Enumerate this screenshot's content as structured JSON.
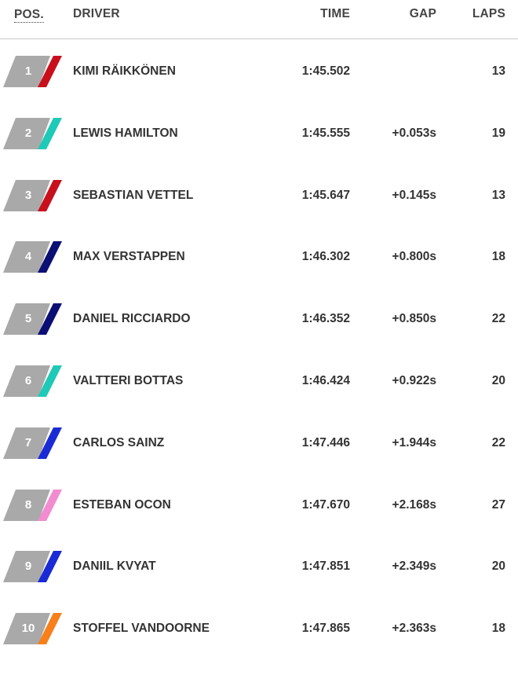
{
  "header": {
    "pos": "POS.",
    "driver": "DRIVER",
    "time": "TIME",
    "gap": "GAP",
    "laps": "LAPS"
  },
  "colors": {
    "badge_grey": "#a9a9a9",
    "ferrari": "#c8101c",
    "mercedes": "#1fc9b8",
    "red_bull": "#0b0f73",
    "toro_rosso": "#1a2bd6",
    "force_india": "#f28bd0",
    "mclaren": "#f7801b"
  },
  "rows": [
    {
      "pos": "1",
      "driver": "KIMI RÄIKKÖNEN",
      "time": "1:45.502",
      "gap": "",
      "laps": "13",
      "team_color": "#c8101c"
    },
    {
      "pos": "2",
      "driver": "LEWIS HAMILTON",
      "time": "1:45.555",
      "gap": "+0.053s",
      "laps": "19",
      "team_color": "#1fc9b8"
    },
    {
      "pos": "3",
      "driver": "SEBASTIAN VETTEL",
      "time": "1:45.647",
      "gap": "+0.145s",
      "laps": "13",
      "team_color": "#c8101c"
    },
    {
      "pos": "4",
      "driver": "MAX VERSTAPPEN",
      "time": "1:46.302",
      "gap": "+0.800s",
      "laps": "18",
      "team_color": "#0b0f73"
    },
    {
      "pos": "5",
      "driver": "DANIEL RICCIARDO",
      "time": "1:46.352",
      "gap": "+0.850s",
      "laps": "22",
      "team_color": "#0b0f73"
    },
    {
      "pos": "6",
      "driver": "VALTTERI BOTTAS",
      "time": "1:46.424",
      "gap": "+0.922s",
      "laps": "20",
      "team_color": "#1fc9b8"
    },
    {
      "pos": "7",
      "driver": "CARLOS SAINZ",
      "time": "1:47.446",
      "gap": "+1.944s",
      "laps": "22",
      "team_color": "#1a2bd6"
    },
    {
      "pos": "8",
      "driver": "ESTEBAN OCON",
      "time": "1:47.670",
      "gap": "+2.168s",
      "laps": "27",
      "team_color": "#f28bd0"
    },
    {
      "pos": "9",
      "driver": "DANIIL KVYAT",
      "time": "1:47.851",
      "gap": "+2.349s",
      "laps": "20",
      "team_color": "#1a2bd6"
    },
    {
      "pos": "10",
      "driver": "STOFFEL VANDOORNE",
      "time": "1:47.865",
      "gap": "+2.363s",
      "laps": "18",
      "team_color": "#f7801b"
    }
  ]
}
